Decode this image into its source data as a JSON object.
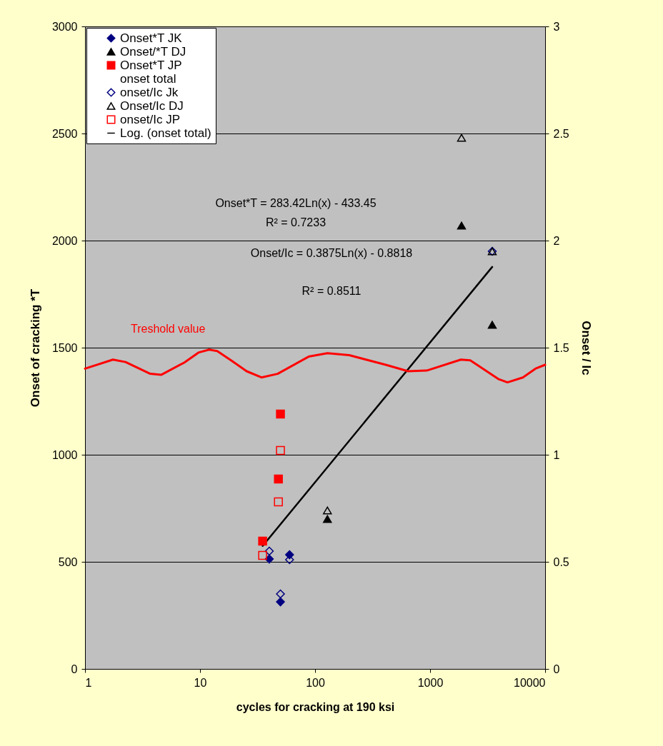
{
  "chart_data": {
    "type": "scatter",
    "xlabel": "cycles for cracking at 190 ksi",
    "ylabel": "Onset of cracking *T",
    "y2label": "Onset / Ic",
    "log": "x",
    "xlim": [
      1,
      10000
    ],
    "xticks": [
      1,
      10,
      100,
      1000,
      10000
    ],
    "ylim": [
      0,
      3000
    ],
    "yticks": [
      0,
      500,
      1000,
      1500,
      2000,
      2500,
      3000
    ],
    "y2lim": [
      0,
      3
    ],
    "y2ticks": [
      0,
      0.5,
      1,
      1.5,
      2,
      2.5,
      3
    ],
    "grid": "y",
    "legend": "top left",
    "annotations": [
      "Onset*T = 283.42Ln(x) - 433.45",
      "R² = 0.7233",
      "Onset/Ic = 0.3875Ln(x) - 0.8818",
      "R² = 0.8511",
      "Treshold value"
    ],
    "series": [
      {
        "name": "Onset*T JK",
        "marker": "diamond",
        "color": "#000080",
        "x": [
          40,
          60,
          50
        ],
        "values": [
          513,
          533,
          313
        ]
      },
      {
        "name": "Onset/*T DJ",
        "marker": "triangle",
        "color": "#000000",
        "x": [
          128,
          1876,
          3470
        ],
        "values": [
          700,
          2070,
          1607
        ]
      },
      {
        "name": "Onset*T JP",
        "marker": "square",
        "color": "#ff0000",
        "x": [
          35,
          48,
          50
        ],
        "values": [
          597,
          887,
          1190
        ]
      },
      {
        "name": "onset total",
        "marker": "none"
      },
      {
        "name": "onset/Ic Jk",
        "marker": "diamond",
        "color": "#000080",
        "axis": "y2",
        "x": [
          40,
          60,
          50,
          3470
        ],
        "values": [
          0.55,
          0.51,
          0.35,
          1.95
        ]
      },
      {
        "name": "Onset/Ic DJ",
        "marker": "triangle",
        "color": "#000000",
        "axis": "y2",
        "x": [
          128,
          1876,
          3470
        ],
        "values": [
          0.74,
          2.48,
          1.95
        ]
      },
      {
        "name": "onset/Ic JP",
        "marker": "square",
        "color": "#ff0000",
        "axis": "y2",
        "x": [
          35,
          48,
          50
        ],
        "values": [
          0.53,
          0.78,
          1.02
        ]
      },
      {
        "name": "Log. (onset total)",
        "type": "line",
        "color": "#000000",
        "x": [
          35,
          3470
        ],
        "values": [
          574,
          1877
        ]
      },
      {
        "type": "line",
        "color": "#ff0000",
        "x": [
          1,
          1.75,
          2.25,
          3.69,
          4.59,
          7.32,
          9.68,
          12,
          14.1,
          18.6,
          25.4,
          34.2,
          47.3,
          87.9,
          128,
          198,
          417,
          644,
          935,
          1853,
          2234,
          3910,
          4707,
          6410,
          8240,
          10000
        ],
        "values": [
          1402,
          1444,
          1433,
          1378,
          1373,
          1431,
          1477,
          1491,
          1484,
          1441,
          1390,
          1361,
          1378,
          1458,
          1474,
          1465,
          1419,
          1390,
          1393,
          1444,
          1441,
          1354,
          1338,
          1361,
          1402,
          1420
        ]
      }
    ]
  }
}
